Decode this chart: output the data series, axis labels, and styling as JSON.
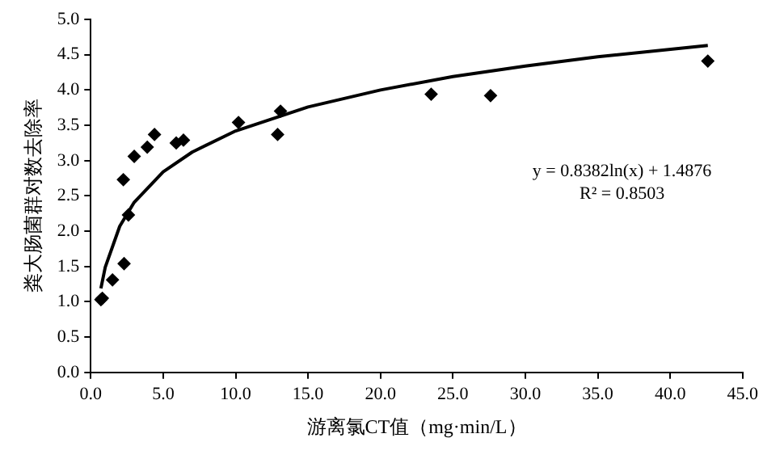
{
  "chart_data": {
    "type": "scatter",
    "xlabel": "游离氯CT值（mg·min/L）",
    "ylabel": "粪大肠菌群对数去除率",
    "x": [
      0.7,
      0.8,
      1.5,
      2.3,
      2.25,
      2.6,
      3.0,
      3.9,
      4.4,
      5.9,
      6.4,
      10.2,
      12.9,
      13.1,
      23.5,
      27.6,
      42.6
    ],
    "series": [
      {
        "type": "scatter",
        "color": "#000000",
        "marker": "diamond",
        "values": [
          1.03,
          1.05,
          1.31,
          1.54,
          2.73,
          2.23,
          3.06,
          3.19,
          3.37,
          3.25,
          3.29,
          3.54,
          3.37,
          3.7,
          3.94,
          3.92,
          4.41
        ]
      },
      {
        "type": "line",
        "color": "#000000",
        "marker": "none",
        "x": [
          0.7,
          1,
          2,
          3,
          5,
          7,
          10,
          15,
          20,
          25,
          30,
          35,
          42.6
        ],
        "values": [
          1.19,
          1.49,
          2.07,
          2.41,
          2.84,
          3.12,
          3.42,
          3.76,
          4.0,
          4.19,
          4.34,
          4.47,
          4.63
        ]
      }
    ],
    "xlim": [
      0,
      45
    ],
    "xticks": [
      {
        "value": 0,
        "label": "0.0"
      },
      {
        "value": 5,
        "label": "5.0"
      },
      {
        "value": 10,
        "label": "10.0"
      },
      {
        "value": 15,
        "label": "15.0"
      },
      {
        "value": 20,
        "label": "20.0"
      },
      {
        "value": 25,
        "label": "25.0"
      },
      {
        "value": 30,
        "label": "30.0"
      },
      {
        "value": 35,
        "label": "35.0"
      },
      {
        "value": 40,
        "label": "40.0"
      },
      {
        "value": 45,
        "label": "45.0"
      }
    ],
    "ylim": [
      0,
      5
    ],
    "yticks": [
      {
        "value": 0,
        "label": "0.0"
      },
      {
        "value": 0.5,
        "label": "0.5"
      },
      {
        "value": 1,
        "label": "1.0"
      },
      {
        "value": 1.5,
        "label": "1.5"
      },
      {
        "value": 2,
        "label": "2.0"
      },
      {
        "value": 2.5,
        "label": "2.5"
      },
      {
        "value": 3,
        "label": "3.0"
      },
      {
        "value": 3.5,
        "label": "3.5"
      },
      {
        "value": 4,
        "label": "4.0"
      },
      {
        "value": 4.5,
        "label": "4.5"
      },
      {
        "value": 5,
        "label": "5.0"
      }
    ],
    "grid": false,
    "legend": false,
    "annotations": [
      "y = 0.8382ln(x) + 1.4876",
      "R² = 0.8503"
    ]
  }
}
